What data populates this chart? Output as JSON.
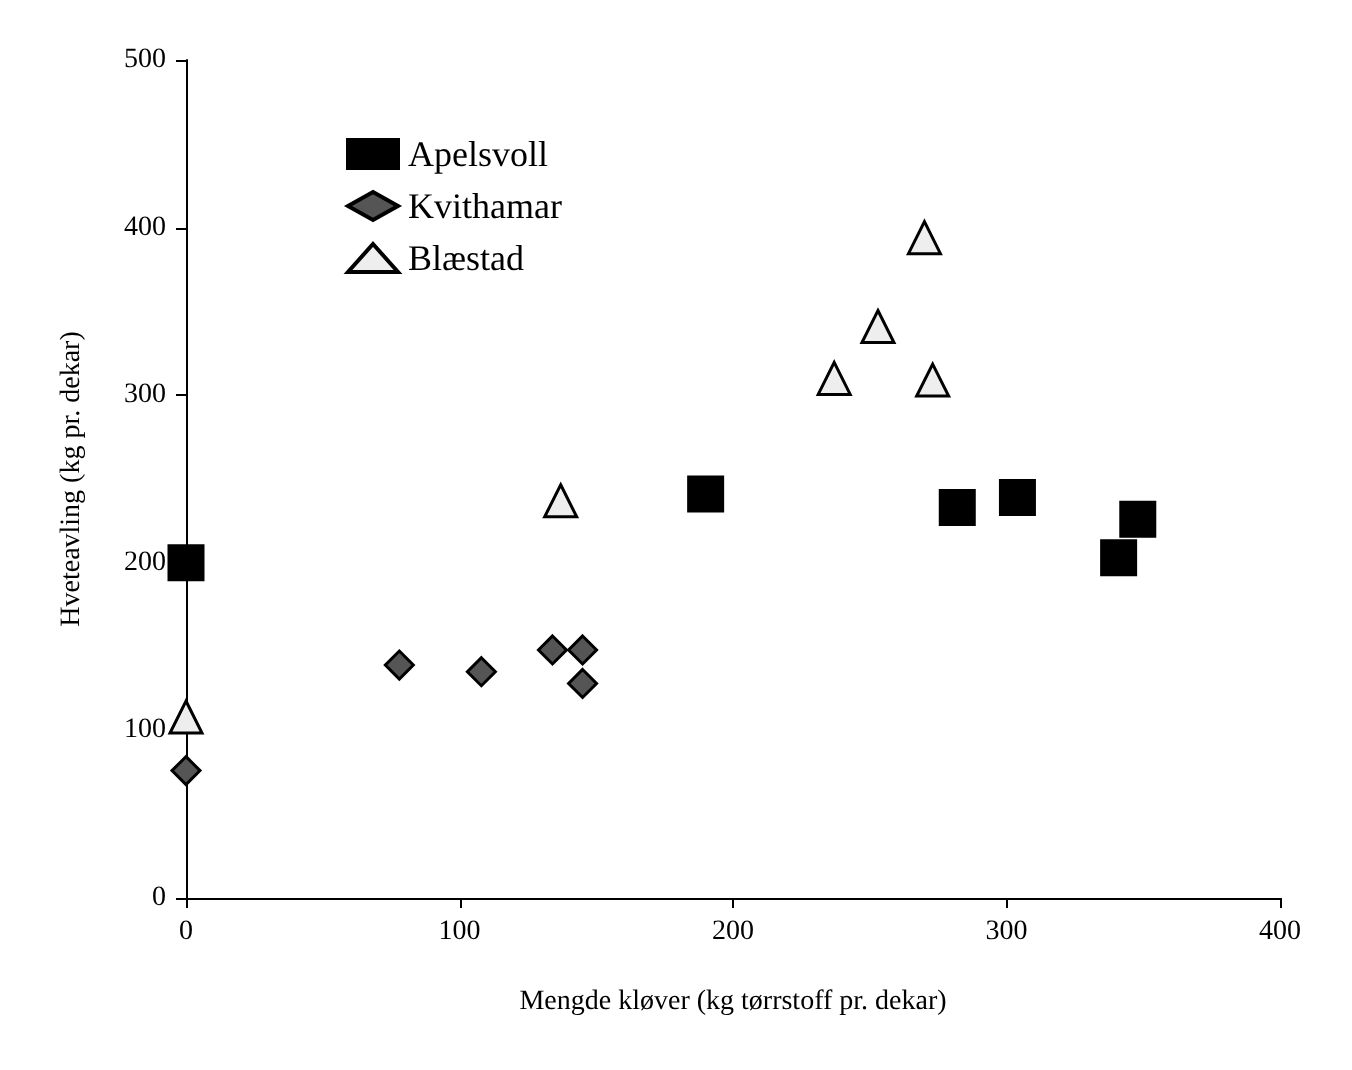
{
  "chart_data": {
    "type": "scatter",
    "xlabel": "Mengde kløver (kg tørrstoff pr. dekar)",
    "ylabel": "Hveteavling (kg pr. dekar)",
    "xlim": [
      0,
      400
    ],
    "xticks": [
      0,
      100,
      200,
      300,
      400
    ],
    "ylim": [
      0,
      500
    ],
    "yticks": [
      0,
      100,
      200,
      300,
      400,
      500
    ],
    "grid": false,
    "legend": "top left",
    "series": [
      {
        "name": "Apelsvoll",
        "color": "#000000",
        "marker": "square",
        "x": [
          0,
          190,
          282,
          304,
          341,
          348
        ],
        "values": [
          200,
          241,
          233,
          239,
          203,
          226
        ]
      },
      {
        "name": "Kvithamar",
        "color": "#555555",
        "marker": "diamond",
        "x": [
          0,
          78,
          108,
          134,
          145,
          145
        ],
        "values": [
          76,
          139,
          135,
          148,
          148,
          128
        ]
      },
      {
        "name": "Blæstad",
        "color": "#eeeeee",
        "marker": "triangle",
        "x": [
          0,
          137,
          237,
          253,
          270,
          273
        ],
        "values": [
          108,
          237,
          310,
          341,
          394,
          309
        ]
      }
    ]
  }
}
